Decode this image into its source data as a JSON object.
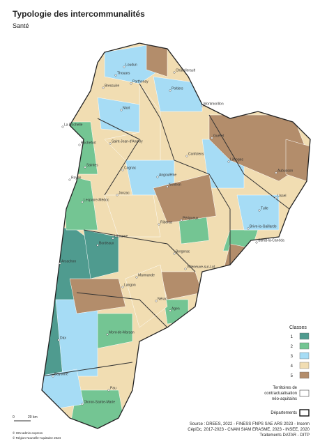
{
  "header": {
    "title": "Typologie des intercommunalités",
    "subtitle": "Santé"
  },
  "map": {
    "cities": [
      "Loudun",
      "Thouars",
      "Châtellerault",
      "Bressuire",
      "Parthenay",
      "Poitiers",
      "Montmorillon",
      "Niort",
      "La Rochelle",
      "Rochefort",
      "Saint-Jean-d'Angély",
      "Saintes",
      "Cognac",
      "Royan",
      "Confolens",
      "Guéret",
      "Limoges",
      "Angoulême",
      "Jonzac",
      "Aubusson",
      "Lesparre-Médoc",
      "Nontron",
      "Ussel",
      "Tulle",
      "Périgueux",
      "Ribérac",
      "Brive-la-Gaillarde",
      "Libourne",
      "Bordeaux",
      "Sarlat-la-Canéda",
      "Arcachon",
      "Bergerac",
      "Marmande",
      "Villeneuve-sur-Lot",
      "Langon",
      "Nérac",
      "Agen",
      "Mont-de-Marsan",
      "Dax",
      "Bayonne",
      "Pau",
      "Oloron-Sainte-Marie"
    ]
  },
  "legend": {
    "title": "Classes",
    "classes": [
      {
        "label": "1",
        "color": "#4f9b8f"
      },
      {
        "label": "2",
        "color": "#74c593"
      },
      {
        "label": "3",
        "color": "#a6dcf5"
      },
      {
        "label": "4",
        "color": "#f1ddb2"
      },
      {
        "label": "5",
        "color": "#b38d6b"
      }
    ],
    "territories": [
      "Territoires de",
      "contractualisation",
      "néo-aquitains"
    ],
    "departments": "Départements"
  },
  "scale": {
    "start": "0",
    "end": "20 km"
  },
  "credits": [
    "© IGN admin express",
    "© Région Nouvelle-Aquitaine 2024"
  ],
  "source": [
    "Source : DREES, 2022 - FINESS FNPS SAE ARS 2023 - Inserm",
    "CépiDc, 2017-2023 - CNAM SIAM ERASME, 2023 - INSEE, 2020",
    "Traitements DATAR - DITP"
  ]
}
